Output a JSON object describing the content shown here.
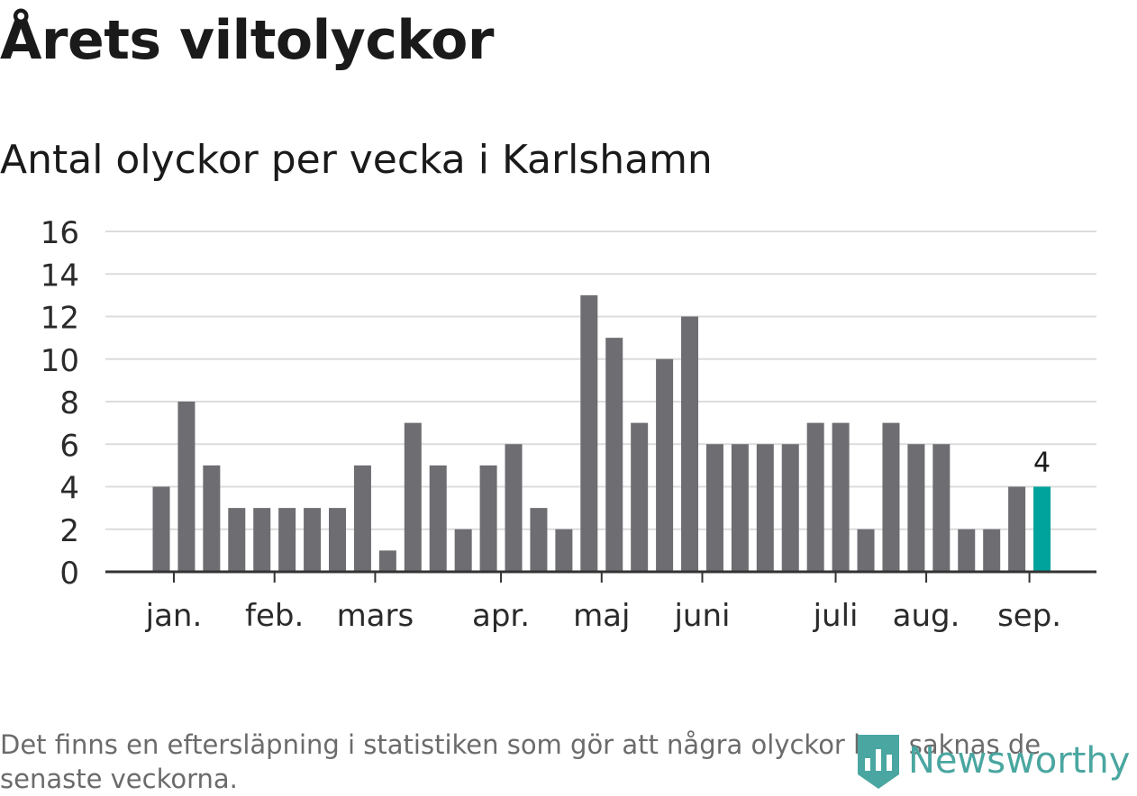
{
  "title": "Årets viltolyckor",
  "subtitle": "Antal olyckor per vecka i Karlshamn",
  "note": "Det finns en eftersläpning i statistiken som gör att några olyckor kan saknas de senaste veckorna.",
  "brand": {
    "name": "Newsworthy",
    "color": "#4aa6a0",
    "icon": "bar-chart-logo-icon"
  },
  "colors": {
    "bar": "#6d6d72",
    "highlight": "#00a39b",
    "grid": "#dcdcdc",
    "axis": "#333333"
  },
  "chart_data": {
    "type": "bar",
    "ylim": [
      0,
      16
    ],
    "yticks": [
      "0",
      "2",
      "4",
      "6",
      "8",
      "10",
      "12",
      "14",
      "16"
    ],
    "grid": true,
    "values": [
      4,
      8,
      5,
      3,
      3,
      3,
      3,
      3,
      5,
      1,
      7,
      5,
      2,
      5,
      6,
      3,
      2,
      13,
      11,
      7,
      10,
      12,
      6,
      6,
      6,
      6,
      7,
      7,
      2,
      7,
      6,
      6,
      2,
      2,
      4,
      4
    ],
    "highlight_index": 35,
    "highlight_label": "4",
    "month_labels": [
      {
        "label": "jan.",
        "at": 0.5
      },
      {
        "label": "feb.",
        "at": 4.5
      },
      {
        "label": "mars",
        "at": 8.5
      },
      {
        "label": "apr.",
        "at": 13.5
      },
      {
        "label": "maj",
        "at": 17.5
      },
      {
        "label": "juni",
        "at": 21.5
      },
      {
        "label": "juli",
        "at": 26.8
      },
      {
        "label": "aug.",
        "at": 30.4
      },
      {
        "label": "sep.",
        "at": 34.5
      }
    ]
  }
}
